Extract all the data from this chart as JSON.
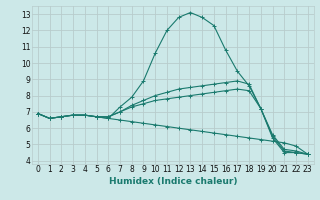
{
  "xlabel": "Humidex (Indice chaleur)",
  "bg_color": "#cce8e8",
  "grid_color": "#b8cccc",
  "line_color": "#1a7a6e",
  "xlim": [
    -0.5,
    23.5
  ],
  "ylim": [
    3.8,
    13.5
  ],
  "xticks": [
    0,
    1,
    2,
    3,
    4,
    5,
    6,
    7,
    8,
    9,
    10,
    11,
    12,
    13,
    14,
    15,
    16,
    17,
    18,
    19,
    20,
    21,
    22,
    23
  ],
  "yticks": [
    4,
    5,
    6,
    7,
    8,
    9,
    10,
    11,
    12,
    13
  ],
  "lines": [
    {
      "x": [
        0,
        1,
        2,
        3,
        4,
        5,
        6,
        7,
        8,
        9,
        10,
        11,
        12,
        13,
        14,
        15,
        16,
        17,
        18,
        19,
        20,
        21,
        22,
        23
      ],
      "y": [
        6.9,
        6.6,
        6.7,
        6.8,
        6.8,
        6.7,
        6.6,
        7.3,
        7.9,
        8.9,
        10.6,
        12.0,
        12.8,
        13.1,
        12.8,
        12.3,
        10.8,
        9.5,
        8.6,
        7.2,
        5.4,
        4.5,
        4.5,
        4.4
      ]
    },
    {
      "x": [
        0,
        1,
        2,
        3,
        4,
        5,
        6,
        7,
        8,
        9,
        10,
        11,
        12,
        13,
        14,
        15,
        16,
        17,
        18,
        19,
        20,
        21,
        22,
        23
      ],
      "y": [
        6.9,
        6.6,
        6.7,
        6.8,
        6.8,
        6.7,
        6.7,
        7.0,
        7.4,
        7.7,
        8.0,
        8.2,
        8.4,
        8.5,
        8.6,
        8.7,
        8.8,
        8.9,
        8.7,
        7.2,
        5.5,
        4.6,
        4.5,
        4.4
      ]
    },
    {
      "x": [
        0,
        1,
        2,
        3,
        4,
        5,
        6,
        7,
        8,
        9,
        10,
        11,
        12,
        13,
        14,
        15,
        16,
        17,
        18,
        19,
        20,
        21,
        22,
        23
      ],
      "y": [
        6.9,
        6.6,
        6.7,
        6.8,
        6.8,
        6.7,
        6.7,
        7.0,
        7.3,
        7.5,
        7.7,
        7.8,
        7.9,
        8.0,
        8.1,
        8.2,
        8.3,
        8.4,
        8.3,
        7.2,
        5.6,
        4.7,
        4.6,
        4.4
      ]
    },
    {
      "x": [
        0,
        1,
        2,
        3,
        4,
        5,
        6,
        7,
        8,
        9,
        10,
        11,
        12,
        13,
        14,
        15,
        16,
        17,
        18,
        19,
        20,
        21,
        22,
        23
      ],
      "y": [
        6.9,
        6.6,
        6.7,
        6.8,
        6.8,
        6.7,
        6.6,
        6.5,
        6.4,
        6.3,
        6.2,
        6.1,
        6.0,
        5.9,
        5.8,
        5.7,
        5.6,
        5.5,
        5.4,
        5.3,
        5.2,
        5.1,
        4.9,
        4.4
      ]
    }
  ]
}
